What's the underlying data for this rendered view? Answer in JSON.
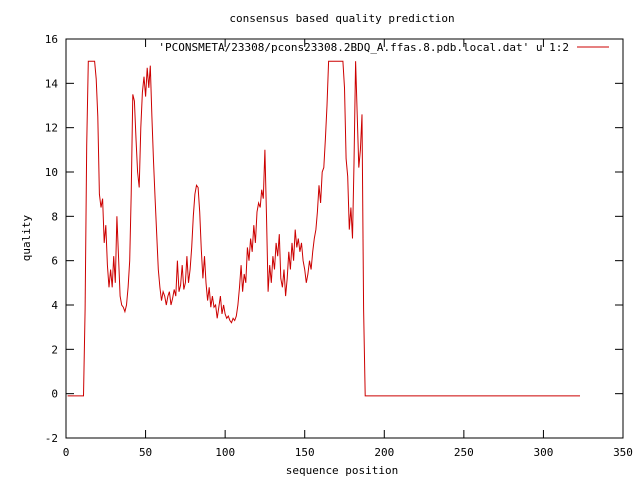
{
  "chart_data": {
    "type": "line",
    "title": "consensus based quality prediction",
    "xlabel": "sequence position",
    "ylabel": "quality",
    "xlim": [
      0,
      350
    ],
    "ylim": [
      -2,
      16
    ],
    "x_ticks": [
      0,
      50,
      100,
      150,
      200,
      250,
      300,
      350
    ],
    "y_ticks": [
      -2,
      0,
      2,
      4,
      6,
      8,
      10,
      12,
      14,
      16
    ],
    "grid": false,
    "legend_position": "top-right",
    "series": [
      {
        "name": "'PCONSMETA/23308/pcons23308.2BDQ_A.ffas.8.pdb.local.dat' u 1:2",
        "color": "#cc0000",
        "points": [
          [
            1,
            -0.1
          ],
          [
            11,
            -0.1
          ],
          [
            12,
            3.8
          ],
          [
            13,
            11.2
          ],
          [
            14,
            15.0
          ],
          [
            15,
            15.0
          ],
          [
            16,
            15.0
          ],
          [
            17,
            15.0
          ],
          [
            18,
            15.0
          ],
          [
            19,
            14.2
          ],
          [
            20,
            12.5
          ],
          [
            21,
            9.0
          ],
          [
            22,
            8.4
          ],
          [
            23,
            8.8
          ],
          [
            24,
            6.8
          ],
          [
            25,
            7.6
          ],
          [
            26,
            5.8
          ],
          [
            27,
            4.8
          ],
          [
            28,
            5.6
          ],
          [
            29,
            4.8
          ],
          [
            30,
            6.2
          ],
          [
            31,
            5.0
          ],
          [
            32,
            8.0
          ],
          [
            33,
            6.2
          ],
          [
            34,
            4.4
          ],
          [
            35,
            4.0
          ],
          [
            36,
            3.9
          ],
          [
            37,
            3.7
          ],
          [
            38,
            4.0
          ],
          [
            39,
            4.8
          ],
          [
            40,
            6.0
          ],
          [
            41,
            9.0
          ],
          [
            42,
            13.5
          ],
          [
            43,
            13.2
          ],
          [
            44,
            11.5
          ],
          [
            45,
            10.0
          ],
          [
            46,
            9.3
          ],
          [
            47,
            12.0
          ],
          [
            48,
            13.6
          ],
          [
            49,
            14.3
          ],
          [
            50,
            13.4
          ],
          [
            51,
            14.7
          ],
          [
            52,
            13.8
          ],
          [
            53,
            14.8
          ],
          [
            54,
            12.5
          ],
          [
            55,
            10.5
          ],
          [
            56,
            8.8
          ],
          [
            57,
            7.2
          ],
          [
            58,
            5.6
          ],
          [
            59,
            4.8
          ],
          [
            60,
            4.2
          ],
          [
            61,
            4.6
          ],
          [
            62,
            4.4
          ],
          [
            63,
            4.0
          ],
          [
            64,
            4.4
          ],
          [
            65,
            4.6
          ],
          [
            66,
            4.0
          ],
          [
            67,
            4.3
          ],
          [
            68,
            4.7
          ],
          [
            69,
            4.4
          ],
          [
            70,
            6.0
          ],
          [
            71,
            4.6
          ],
          [
            72,
            4.9
          ],
          [
            73,
            5.8
          ],
          [
            74,
            4.7
          ],
          [
            75,
            5.0
          ],
          [
            76,
            6.2
          ],
          [
            77,
            5.0
          ],
          [
            78,
            5.6
          ],
          [
            79,
            6.6
          ],
          [
            80,
            8.0
          ],
          [
            81,
            9.0
          ],
          [
            82,
            9.4
          ],
          [
            83,
            9.3
          ],
          [
            84,
            8.2
          ],
          [
            85,
            6.5
          ],
          [
            86,
            5.2
          ],
          [
            87,
            6.2
          ],
          [
            88,
            5.0
          ],
          [
            89,
            4.2
          ],
          [
            90,
            4.8
          ],
          [
            91,
            3.9
          ],
          [
            92,
            4.4
          ],
          [
            93,
            3.9
          ],
          [
            94,
            4.0
          ],
          [
            95,
            3.4
          ],
          [
            96,
            3.9
          ],
          [
            97,
            4.4
          ],
          [
            98,
            3.6
          ],
          [
            99,
            4.0
          ],
          [
            100,
            3.6
          ],
          [
            101,
            3.4
          ],
          [
            102,
            3.5
          ],
          [
            103,
            3.3
          ],
          [
            104,
            3.2
          ],
          [
            105,
            3.4
          ],
          [
            106,
            3.3
          ],
          [
            107,
            3.5
          ],
          [
            108,
            4.0
          ],
          [
            109,
            4.8
          ],
          [
            110,
            5.8
          ],
          [
            111,
            4.6
          ],
          [
            112,
            5.4
          ],
          [
            113,
            5.0
          ],
          [
            114,
            6.6
          ],
          [
            115,
            6.0
          ],
          [
            116,
            7.0
          ],
          [
            117,
            6.4
          ],
          [
            118,
            7.6
          ],
          [
            119,
            6.8
          ],
          [
            120,
            8.2
          ],
          [
            121,
            8.6
          ],
          [
            122,
            8.4
          ],
          [
            123,
            9.2
          ],
          [
            124,
            8.8
          ],
          [
            125,
            11.0
          ],
          [
            126,
            8.0
          ],
          [
            127,
            4.6
          ],
          [
            128,
            5.8
          ],
          [
            129,
            5.0
          ],
          [
            130,
            6.2
          ],
          [
            131,
            5.6
          ],
          [
            132,
            6.8
          ],
          [
            133,
            6.2
          ],
          [
            134,
            7.2
          ],
          [
            135,
            5.2
          ],
          [
            136,
            4.8
          ],
          [
            137,
            5.6
          ],
          [
            138,
            4.4
          ],
          [
            139,
            5.2
          ],
          [
            140,
            6.4
          ],
          [
            141,
            5.6
          ],
          [
            142,
            6.8
          ],
          [
            143,
            6.0
          ],
          [
            144,
            7.4
          ],
          [
            145,
            6.6
          ],
          [
            146,
            7.0
          ],
          [
            147,
            6.4
          ],
          [
            148,
            6.8
          ],
          [
            149,
            6.0
          ],
          [
            150,
            5.6
          ],
          [
            151,
            5.0
          ],
          [
            152,
            5.4
          ],
          [
            153,
            6.0
          ],
          [
            154,
            5.6
          ],
          [
            155,
            6.4
          ],
          [
            156,
            7.0
          ],
          [
            157,
            7.4
          ],
          [
            158,
            8.2
          ],
          [
            159,
            9.4
          ],
          [
            160,
            8.6
          ],
          [
            161,
            10.0
          ],
          [
            162,
            10.2
          ],
          [
            163,
            11.5
          ],
          [
            164,
            13.0
          ],
          [
            165,
            15.0
          ],
          [
            166,
            15.0
          ],
          [
            167,
            15.0
          ],
          [
            168,
            15.0
          ],
          [
            169,
            15.0
          ],
          [
            170,
            15.0
          ],
          [
            171,
            15.0
          ],
          [
            172,
            15.0
          ],
          [
            173,
            15.0
          ],
          [
            174,
            15.0
          ],
          [
            175,
            13.8
          ],
          [
            176,
            10.6
          ],
          [
            177,
            9.8
          ],
          [
            178,
            7.4
          ],
          [
            179,
            8.4
          ],
          [
            180,
            7.0
          ],
          [
            181,
            10.4
          ],
          [
            182,
            15.0
          ],
          [
            183,
            12.6
          ],
          [
            184,
            10.2
          ],
          [
            185,
            11.0
          ],
          [
            186,
            12.6
          ],
          [
            187,
            3.8
          ],
          [
            188,
            -0.1
          ],
          [
            189,
            -0.1
          ],
          [
            200,
            -0.1
          ],
          [
            250,
            -0.1
          ],
          [
            300,
            -0.1
          ],
          [
            323,
            -0.1
          ]
        ]
      }
    ]
  }
}
